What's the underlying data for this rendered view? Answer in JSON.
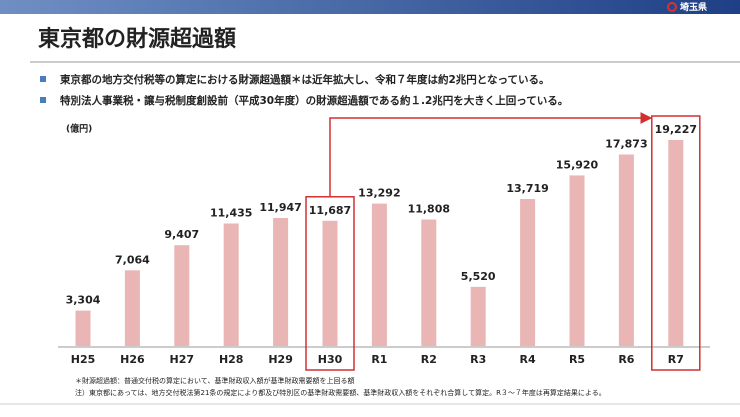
{
  "header": {
    "logo": "埼玉県",
    "title": "東京都の財源超過額"
  },
  "bullets": [
    "東京都の地方交付税等の算定における財源超過額＊は近年拡大し、令和７年度は約2兆円となっている。",
    "特別法人事業税・譲与税制度創設前（平成30年度）の財源超過額である約１.2兆円を大きく上回っている。"
  ],
  "chart_data": {
    "type": "bar",
    "unit_label": "(億円)",
    "categories": [
      "H25",
      "H26",
      "H27",
      "H28",
      "H29",
      "H30",
      "R1",
      "R2",
      "R3",
      "R4",
      "R5",
      "R6",
      "R7"
    ],
    "values": [
      3304,
      7064,
      9407,
      11435,
      11947,
      11687,
      13292,
      11808,
      5520,
      13719,
      15920,
      17873,
      19227
    ],
    "value_labels": [
      "3,304",
      "7,064",
      "9,407",
      "11,435",
      "11,947",
      "11,687",
      "13,292",
      "11,808",
      "5,520",
      "13,719",
      "15,920",
      "17,873",
      "19,227"
    ],
    "color": "#e9b5b5"
  },
  "footnotes": [
    "＊財源超過額：普通交付税の算定において、基準財政収入額が基準財政需要額を上回る額",
    "注）東京都にあっては、地方交付税法第21条の規定により都及び特別区の基準財政需要額、基準財政収入額をそれぞれ合算して算定。R３～７年度は再算定結果による。"
  ]
}
